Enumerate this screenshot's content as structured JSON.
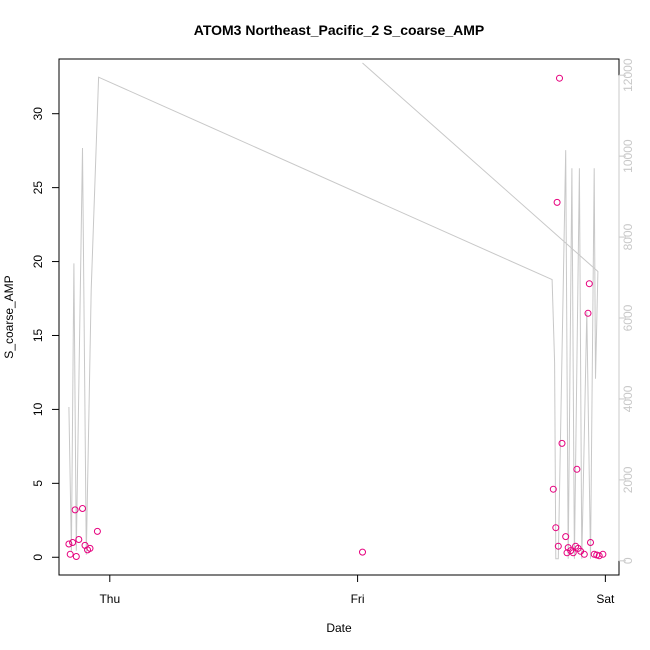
{
  "chart_data": {
    "type": "scatter",
    "title": "ATOM3 Northeast_Pacific_2 S_coarse_AMP",
    "xlabel": "Date",
    "ylabel": "S_coarse_AMP",
    "x_ticks": [
      {
        "label": "Thu",
        "t": 0.0
      },
      {
        "label": "Fri",
        "t": 1.0
      },
      {
        "label": "Sat",
        "t": 2.0
      }
    ],
    "xlim": [
      -0.205,
      2.055
    ],
    "ylim": [
      -1.2,
      33.7
    ],
    "yticks": [
      0,
      5,
      10,
      15,
      20,
      25,
      30
    ],
    "y2lim": [
      -350,
      12400
    ],
    "y2ticks": [
      0,
      2000,
      4000,
      6000,
      8000,
      10000,
      12000
    ],
    "grid": false,
    "colors": {
      "points": "#e6007e",
      "line": "#c8c8c8",
      "right_axis": "#c8c8c8"
    },
    "series": [
      {
        "type": "scatter",
        "axis": "left",
        "points": [
          {
            "t": -0.165,
            "y": 0.9
          },
          {
            "t": -0.16,
            "y": 0.2
          },
          {
            "t": -0.15,
            "y": 1.0
          },
          {
            "t": -0.14,
            "y": 3.2
          },
          {
            "t": -0.135,
            "y": 0.05
          },
          {
            "t": -0.125,
            "y": 1.2
          },
          {
            "t": -0.11,
            "y": 3.3
          },
          {
            "t": -0.1,
            "y": 0.8
          },
          {
            "t": -0.09,
            "y": 0.5
          },
          {
            "t": -0.08,
            "y": 0.6
          },
          {
            "t": -0.05,
            "y": 1.75
          },
          {
            "t": 1.02,
            "y": 0.35
          },
          {
            "t": 1.79,
            "y": 4.6
          },
          {
            "t": 1.8,
            "y": 2.0
          },
          {
            "t": 1.805,
            "y": 24.0
          },
          {
            "t": 1.81,
            "y": 0.75
          },
          {
            "t": 1.815,
            "y": 32.4
          },
          {
            "t": 1.825,
            "y": 7.7
          },
          {
            "t": 1.84,
            "y": 1.4
          },
          {
            "t": 1.845,
            "y": 0.3
          },
          {
            "t": 1.85,
            "y": 0.65
          },
          {
            "t": 1.86,
            "y": 0.45
          },
          {
            "t": 1.87,
            "y": 0.3
          },
          {
            "t": 1.88,
            "y": 0.75
          },
          {
            "t": 1.885,
            "y": 5.95
          },
          {
            "t": 1.89,
            "y": 0.6
          },
          {
            "t": 1.9,
            "y": 0.4
          },
          {
            "t": 1.915,
            "y": 0.2
          },
          {
            "t": 1.93,
            "y": 16.5
          },
          {
            "t": 1.935,
            "y": 18.5
          },
          {
            "t": 1.94,
            "y": 1.0
          },
          {
            "t": 1.955,
            "y": 0.2
          },
          {
            "t": 1.965,
            "y": 0.15
          },
          {
            "t": 1.975,
            "y": 0.1
          },
          {
            "t": 1.99,
            "y": 0.2
          }
        ]
      },
      {
        "type": "line",
        "axis": "right",
        "points": [
          {
            "t": -0.165,
            "y": 3800
          },
          {
            "t": -0.155,
            "y": 250
          },
          {
            "t": -0.145,
            "y": 7350
          },
          {
            "t": -0.135,
            "y": 250
          },
          {
            "t": -0.11,
            "y": 10200
          },
          {
            "t": -0.095,
            "y": 150
          },
          {
            "t": -0.075,
            "y": 6700
          },
          {
            "t": -0.045,
            "y": 11950
          },
          {
            "t": 1.785,
            "y": 6950
          },
          {
            "t": 1.795,
            "y": 4900
          },
          {
            "t": 1.8,
            "y": 50
          },
          {
            "t": 1.81,
            "y": 50
          },
          {
            "t": 1.84,
            "y": 10150
          },
          {
            "t": 1.85,
            "y": 50
          },
          {
            "t": 1.865,
            "y": 9700
          },
          {
            "t": 1.875,
            "y": 50
          },
          {
            "t": 1.895,
            "y": 9700
          },
          {
            "t": 1.905,
            "y": 50
          },
          {
            "t": 1.925,
            "y": 6150
          },
          {
            "t": 1.94,
            "y": 50
          },
          {
            "t": 1.955,
            "y": 9700
          },
          {
            "t": 1.96,
            "y": 4500
          },
          {
            "t": 1.97,
            "y": 7150
          },
          {
            "t": 1.02,
            "y": 12300
          }
        ]
      }
    ]
  }
}
